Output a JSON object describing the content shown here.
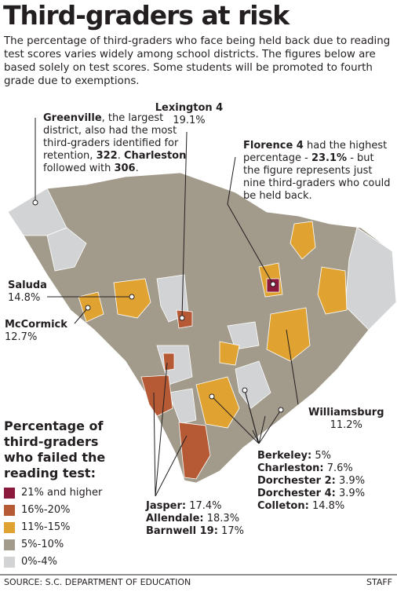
{
  "title": "Third-graders at risk",
  "intro": "The percentage of third-graders who face being held back due to reading test scores varies widely among school districts. The figures below are based solely on test scores. Some students will be promoted to fourth grade due to exemptions.",
  "callouts": {
    "greenville": [
      "Greenville",
      ", the largest district, also had the most third-graders identified for retention, ",
      "322",
      ". ",
      "Charleston",
      " followed with ",
      "306",
      "."
    ],
    "lexington": {
      "name": "Lexington 4",
      "value": "19.1%"
    },
    "florence": [
      "Florence 4",
      " had the highest percentage - ",
      "23.1%",
      " - but the figure represents just nine third-graders who could be held back."
    ],
    "saluda": {
      "name": "Saluda",
      "value": "14.8%"
    },
    "mccormick": {
      "name": "McCormick",
      "value": "12.7%"
    },
    "williamsburg": {
      "name": "Williamsburg",
      "value": "11.2%"
    },
    "coastal": [
      {
        "name": "Berkeley:",
        "value": "5%"
      },
      {
        "name": "Charleston:",
        "value": "7.6%"
      },
      {
        "name": "Dorchester 2:",
        "value": "3.9%"
      },
      {
        "name": "Dorchester 4:",
        "value": "3.9%"
      },
      {
        "name": "Colleton:",
        "value": "14.8%"
      }
    ],
    "southern": [
      {
        "name": "Jasper:",
        "value": "17.4%"
      },
      {
        "name": "Allendale:",
        "value": "18.3%"
      },
      {
        "name": "Barnwell 19:",
        "value": "17%"
      }
    ]
  },
  "legend": {
    "title": "Percentage of third-graders who failed the reading test:",
    "items": [
      {
        "label": "21% and higher",
        "color": "#8c1a3d"
      },
      {
        "label": "16%-20%",
        "color": "#b65a36"
      },
      {
        "label": "11%-15%",
        "color": "#e0a331"
      },
      {
        "label": "5%-10%",
        "color": "#a29b8b"
      },
      {
        "label": "0%-4%",
        "color": "#d2d3d4"
      }
    ]
  },
  "footer": {
    "source": "SOURCE: S.C. DEPARTMENT OF EDUCATION",
    "credit": "STAFF"
  }
}
